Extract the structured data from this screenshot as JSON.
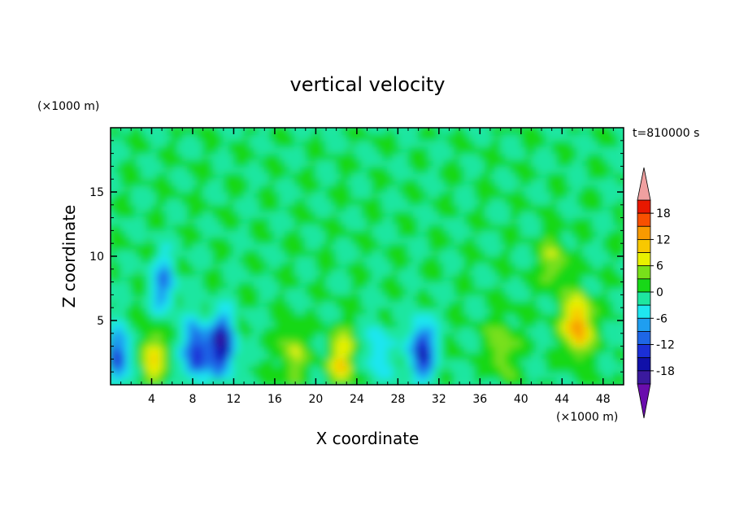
{
  "chart_data": {
    "type": "heatmap",
    "title": "vertical velocity",
    "xlabel": "X coordinate",
    "ylabel": "Z coordinate",
    "x_unit": "(×1000 m)",
    "y_unit": "(×1000 m)",
    "time_label": "t=810000 s",
    "xlim": [
      0,
      50
    ],
    "ylim": [
      0,
      20
    ],
    "x_ticks": [
      "4",
      "8",
      "12",
      "16",
      "20",
      "24",
      "28",
      "32",
      "36",
      "40",
      "44",
      "48"
    ],
    "y_ticks": [
      "5",
      "10",
      "15"
    ],
    "colorbar": {
      "levels": [
        -21,
        -18,
        -15,
        -12,
        -9,
        -6,
        -3,
        0,
        3,
        6,
        9,
        12,
        15,
        18,
        21
      ],
      "labels": [
        "18",
        "12",
        "6",
        "0",
        "-6",
        "-12",
        "-18"
      ],
      "extend": "both",
      "colors": [
        "#6a0dad",
        "#3a1a9e",
        "#1010a8",
        "#1b2fd6",
        "#1e66e6",
        "#1f9ef0",
        "#1fe6f0",
        "#1ee6a0",
        "#18d818",
        "#78e01a",
        "#e8f000",
        "#f8c800",
        "#f89a00",
        "#f85000",
        "#e81800",
        "#f0a0a0"
      ]
    },
    "features": [
      {
        "x": 0.8,
        "z": 2.2,
        "value": -12
      },
      {
        "x": 4.1,
        "z": 2.0,
        "value": 9
      },
      {
        "x": 5.2,
        "z": 7.8,
        "value": -9
      },
      {
        "x": 8.4,
        "z": 2.6,
        "value": -15
      },
      {
        "x": 10.9,
        "z": 3.1,
        "value": -18
      },
      {
        "x": 17.8,
        "z": 2.3,
        "value": 6
      },
      {
        "x": 22.6,
        "z": 2.0,
        "value": 9
      },
      {
        "x": 26.1,
        "z": 2.6,
        "value": -6
      },
      {
        "x": 30.4,
        "z": 2.6,
        "value": -15
      },
      {
        "x": 38.2,
        "z": 3.0,
        "value": 6
      },
      {
        "x": 45.6,
        "z": 4.6,
        "value": 15
      },
      {
        "x": 43.2,
        "z": 9.6,
        "value": 6
      }
    ]
  }
}
